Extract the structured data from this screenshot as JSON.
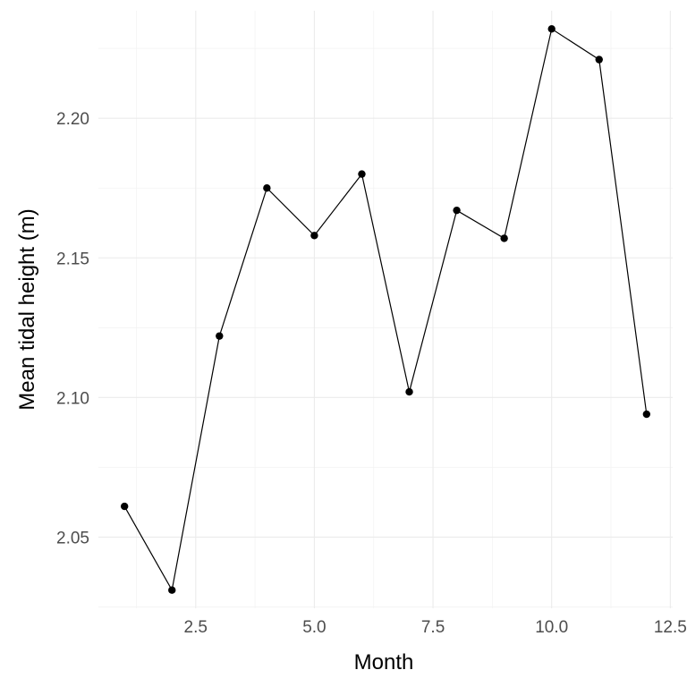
{
  "chart_data": {
    "type": "line",
    "title": "",
    "xlabel": "Month",
    "ylabel": "Mean tidal height (m)",
    "xlim": [
      0.45,
      12.55
    ],
    "ylim": [
      2.0245,
      2.2385
    ],
    "x_ticks": [
      2.5,
      5.0,
      7.5,
      10.0,
      12.5
    ],
    "x_tick_labels": [
      "2.5",
      "5.0",
      "7.5",
      "10.0",
      "12.5"
    ],
    "y_ticks": [
      2.05,
      2.1,
      2.15,
      2.2
    ],
    "y_tick_labels": [
      "2.05",
      "2.10",
      "2.15",
      "2.20"
    ],
    "grid": true,
    "legend": "none",
    "series": [
      {
        "x": [
          1,
          2,
          3,
          4,
          5,
          6,
          7,
          8,
          9,
          10,
          11,
          12
        ],
        "values": [
          2.061,
          2.031,
          2.122,
          2.175,
          2.158,
          2.18,
          2.102,
          2.167,
          2.157,
          2.232,
          2.221,
          2.094
        ],
        "color": "#000000"
      }
    ]
  }
}
